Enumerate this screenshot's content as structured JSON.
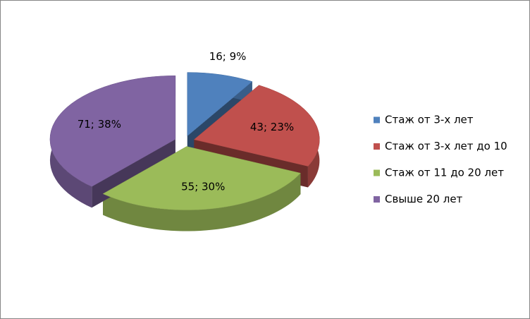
{
  "chart_data": {
    "type": "pie",
    "categories": [
      "Стаж от 3-х лет",
      "Стаж от 3-х лет до 10",
      "Стаж от 11 до 20 лет",
      "Свыше 20 лет"
    ],
    "values": [
      16,
      43,
      55,
      71
    ],
    "value_labels": [
      "16; 9%",
      "43; 23%",
      "55; 30%",
      "71; 38%"
    ],
    "colors": [
      "#4f81bd",
      "#c0504d",
      "#9bbb59",
      "#8064a2"
    ],
    "legend": "right"
  }
}
